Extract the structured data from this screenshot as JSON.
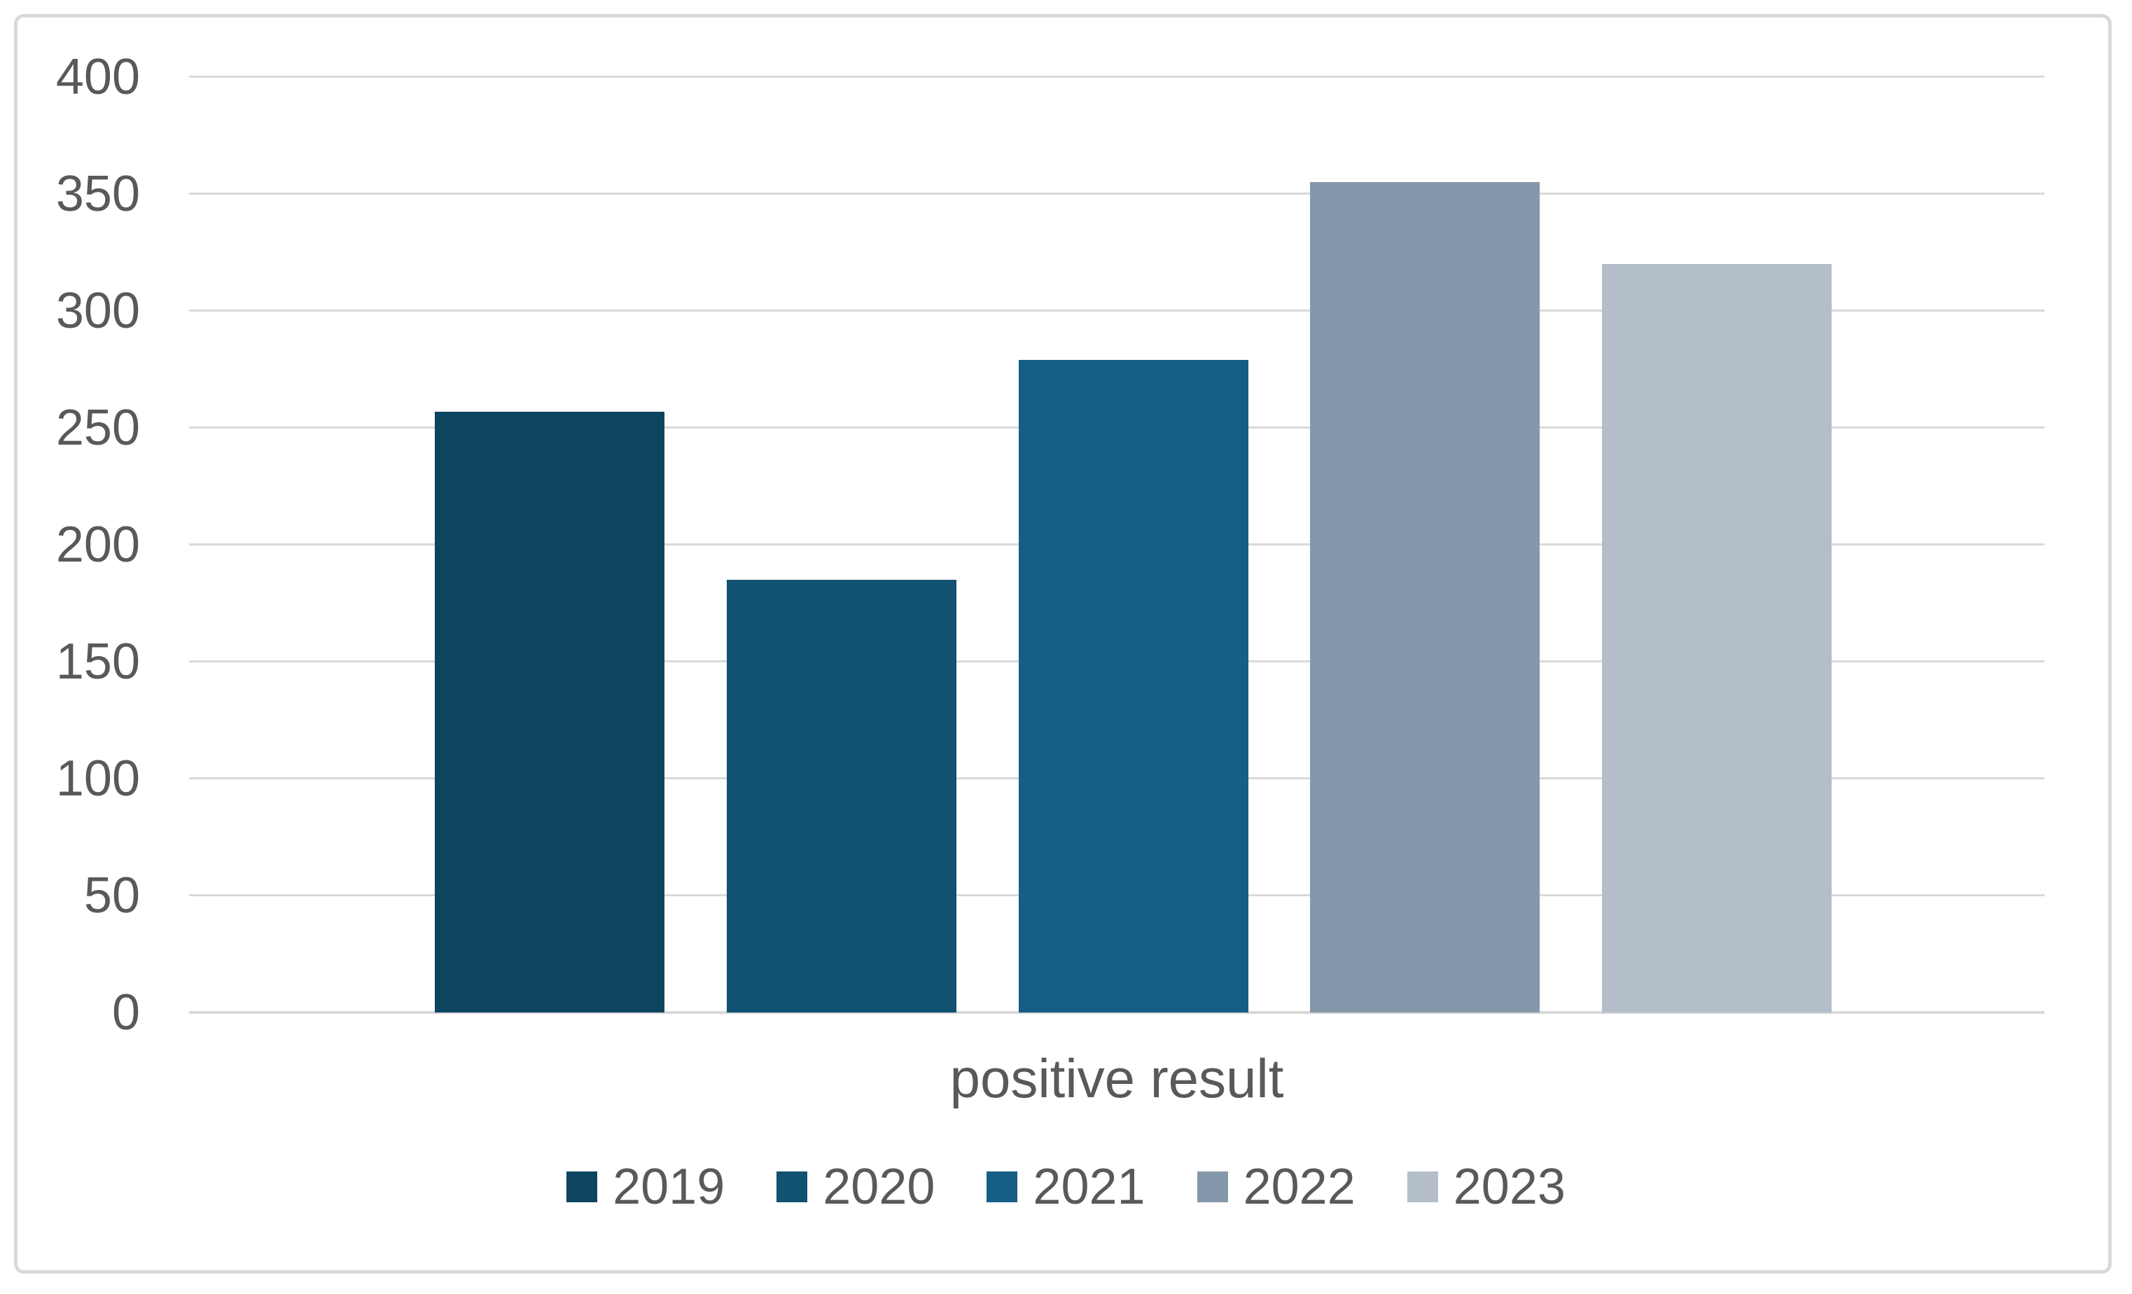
{
  "chart_data": {
    "type": "bar",
    "categories": [
      "positive result"
    ],
    "series": [
      {
        "name": "2019",
        "values": [
          257
        ],
        "color": "#0d4560"
      },
      {
        "name": "2020",
        "values": [
          185
        ],
        "color": "#115270"
      },
      {
        "name": "2021",
        "values": [
          279
        ],
        "color": "#155f87"
      },
      {
        "name": "2022",
        "values": [
          355
        ],
        "color": "#8598ab"
      },
      {
        "name": "2023",
        "values": [
          320
        ],
        "color": "#b4bec9"
      }
    ],
    "title": "",
    "xlabel": "positive result",
    "ylabel": "",
    "ylim": [
      0,
      400
    ],
    "yticks": [
      400,
      350,
      300,
      250,
      200,
      150,
      100,
      50,
      0
    ],
    "grid": true,
    "legend_position": "bottom",
    "colors": {
      "gridline": "#d9d9d9",
      "axis_text": "#595959",
      "frame_border": "#d9d9d9",
      "background": "#ffffff"
    }
  },
  "legend": {
    "items": [
      {
        "label": "2019"
      },
      {
        "label": "2020"
      },
      {
        "label": "2021"
      },
      {
        "label": "2022"
      },
      {
        "label": "2023"
      }
    ]
  }
}
